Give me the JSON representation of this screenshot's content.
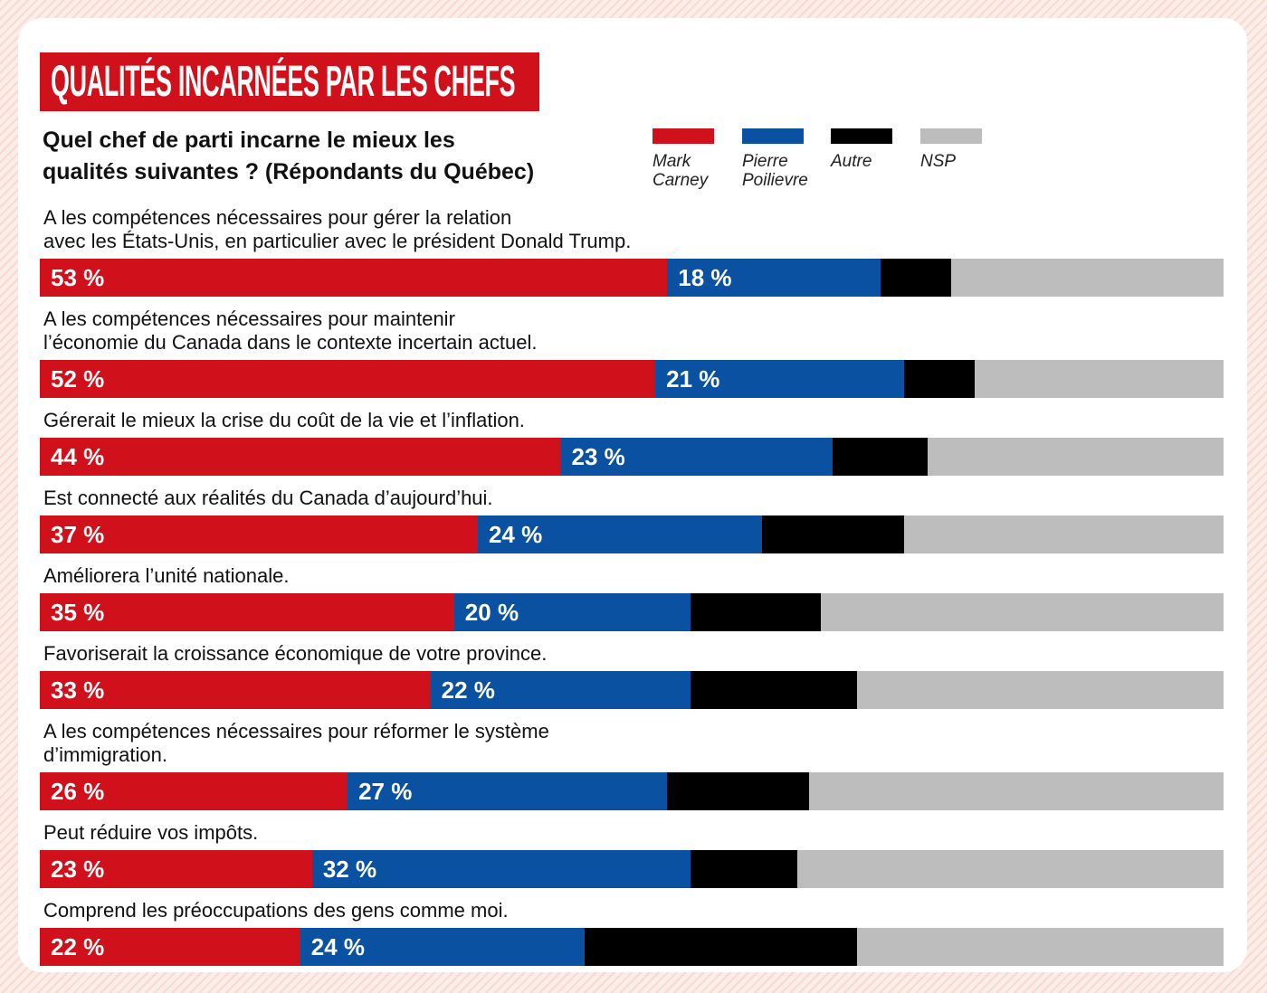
{
  "chart_data": {
    "type": "stacked-bar-horizontal",
    "title": "QUALITÉS INCARNÉES PAR LES CHEFS",
    "subtitle": "Quel chef de parti incarne le mieux les\nqualités suivantes ? (Répondants du Québec)",
    "categories": [
      "A les compétences nécessaires pour gérer la relation\navec les États-Unis, en particulier avec le président Donald Trump.",
      "A les compétences nécessaires pour maintenir\nl’économie du Canada dans le contexte incertain actuel.",
      "Gérerait le mieux la crise du coût de la vie et l’inflation.",
      "Est connecté aux réalités du Canada d’aujourd’hui.",
      "Améliorera l’unité nationale.",
      "Favoriserait la croissance économique de votre province.",
      "A les compétences nécessaires pour réformer le système\nd’immigration.",
      "Peut réduire vos impôts.",
      "Comprend les préoccupations des gens comme moi."
    ],
    "xlim": [
      0,
      100
    ],
    "series": [
      {
        "name": "Mark Carney",
        "color": "#d0101a",
        "values": [
          53,
          52,
          44,
          37,
          35,
          33,
          26,
          23,
          22
        ],
        "value_labels": [
          "53 %",
          "52 %",
          "44 %",
          "37 %",
          "35 %",
          "33 %",
          "26 %",
          "23 %",
          "22 %"
        ]
      },
      {
        "name": "Pierre Poilievre",
        "color": "#0a51a1",
        "values": [
          18,
          21,
          23,
          24,
          20,
          22,
          27,
          32,
          24
        ],
        "value_labels": [
          "18 %",
          "21 %",
          "23 %",
          "24 %",
          "20 %",
          "22 %",
          "27 %",
          "32 %",
          "24 %"
        ]
      },
      {
        "name": "Autre",
        "color": "#000000",
        "values": [
          6,
          6,
          8,
          12,
          11,
          14,
          12,
          9,
          23
        ]
      },
      {
        "name": "NSP",
        "color": "#bdbdbd",
        "values": [
          23,
          21,
          25,
          27,
          34,
          31,
          35,
          36,
          31
        ]
      }
    ]
  }
}
